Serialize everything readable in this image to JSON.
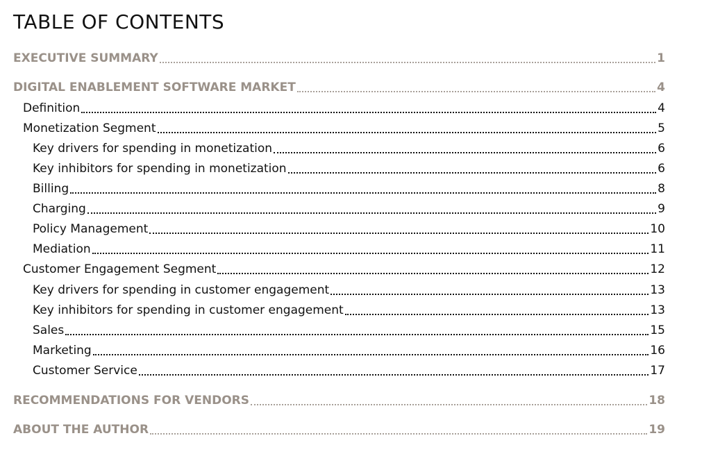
{
  "document": {
    "title": "TABLE OF CONTENTS",
    "entries": [
      {
        "label": "EXECUTIVE SUMMARY",
        "page": "1"
      },
      {
        "label": "DIGITAL ENABLEMENT SOFTWARE MARKET",
        "page": "4"
      },
      {
        "label": "Definition",
        "page": "4"
      },
      {
        "label": "Monetization Segment",
        "page": "5"
      },
      {
        "label": "Key drivers for spending in monetization",
        "page": "6"
      },
      {
        "label": "Key inhibitors for spending in monetization",
        "page": "6"
      },
      {
        "label": "Billing",
        "page": "8"
      },
      {
        "label": "Charging",
        "page": "9"
      },
      {
        "label": "Policy Management",
        "page": "10"
      },
      {
        "label": "Mediation",
        "page": "11"
      },
      {
        "label": "Customer Engagement Segment",
        "page": "12"
      },
      {
        "label": "Key drivers for spending in customer engagement",
        "page": "13"
      },
      {
        "label": "Key inhibitors for spending in customer engagement",
        "page": "13"
      },
      {
        "label": "Sales",
        "page": "15"
      },
      {
        "label": "Marketing",
        "page": "16"
      },
      {
        "label": "Customer Service",
        "page": "17"
      },
      {
        "label": "RECOMMENDATIONS FOR VENDORS",
        "page": "18"
      },
      {
        "label": "ABOUT THE AUTHOR",
        "page": "19"
      }
    ]
  },
  "colors": {
    "section_heading": "#9a9189",
    "body_text": "#111111"
  }
}
